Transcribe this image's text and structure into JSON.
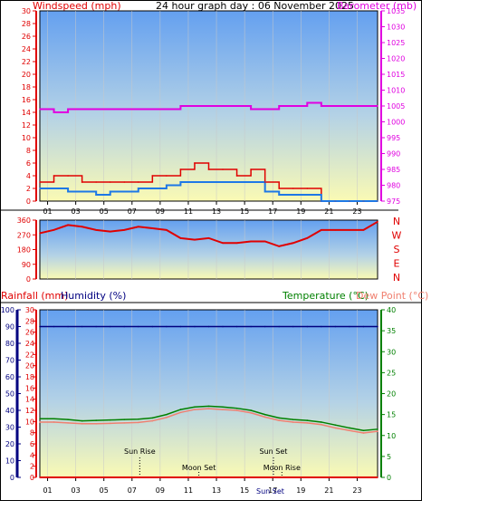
{
  "header": {
    "left_title": "Windspeed (mph)",
    "center_title": "24 hour graph day : 06 November 2025",
    "right_title": "Barometer (mb)"
  },
  "colors": {
    "wind_red": "#e00000",
    "gust_blue": "#1e78e6",
    "baro_magenta": "#e000e0",
    "temp_green": "#008000",
    "dew_salmon": "#f08070",
    "humidity_navy": "#000080",
    "rain_red": "#e00000",
    "sky_top": "#64a0f0",
    "sky_bottom": "#fafab4"
  },
  "chart_data": [
    {
      "type": "line",
      "title": "24 hour graph day : 06 November 2025",
      "x_ticks": [
        "01",
        "03",
        "05",
        "07",
        "09",
        "11",
        "13",
        "15",
        "17",
        "19",
        "21",
        "23"
      ],
      "y_left_label": "Windspeed (mph)",
      "y_left_ticks": [
        "0",
        "2",
        "4",
        "6",
        "8",
        "10",
        "12",
        "14",
        "16",
        "18",
        "20",
        "22",
        "24",
        "26",
        "28",
        "30"
      ],
      "ylim_left": [
        0,
        30
      ],
      "y_right_label": "Barometer (mb)",
      "y_right_ticks": [
        "975",
        "980",
        "985",
        "990",
        "995",
        "1000",
        "1005",
        "1010",
        "1015",
        "1020",
        "1025",
        "1030",
        "1035"
      ],
      "ylim_right": [
        975,
        1035
      ],
      "x_hours": [
        0,
        1,
        2,
        3,
        4,
        5,
        6,
        7,
        8,
        9,
        10,
        11,
        12,
        13,
        14,
        15,
        16,
        17,
        18,
        19,
        20,
        21,
        22,
        23,
        24
      ],
      "series": [
        {
          "name": "wind_gust",
          "values": [
            3,
            4,
            4,
            3,
            3,
            3,
            3,
            3,
            4,
            4,
            5,
            6,
            5,
            5,
            4,
            5,
            3,
            2,
            2,
            2,
            0,
            0,
            0,
            0,
            0
          ]
        },
        {
          "name": "wind_avg",
          "values": [
            2,
            2,
            1.5,
            1.5,
            1,
            1.5,
            1.5,
            2,
            2,
            2.5,
            3,
            3,
            3,
            3,
            3,
            3,
            1.5,
            1,
            1,
            1,
            0,
            0,
            0,
            0,
            0
          ]
        },
        {
          "name": "barometer",
          "values": [
            1004,
            1003,
            1004,
            1004,
            1004,
            1004,
            1004,
            1004,
            1004,
            1004,
            1005,
            1005,
            1005,
            1005,
            1005,
            1004,
            1004,
            1005,
            1005,
            1006,
            1005,
            1005,
            1005,
            1005,
            1005
          ]
        }
      ]
    },
    {
      "type": "line",
      "y_ticks": [
        "0",
        "90",
        "180",
        "270",
        "360"
      ],
      "ylim": [
        0,
        360
      ],
      "compass_labels": [
        "N",
        "W",
        "S",
        "E",
        "N"
      ],
      "x_hours": [
        0,
        1,
        2,
        3,
        4,
        5,
        6,
        7,
        8,
        9,
        10,
        11,
        12,
        13,
        14,
        15,
        16,
        17,
        18,
        19,
        20,
        21,
        22,
        23,
        24
      ],
      "series": [
        {
          "name": "wind_direction",
          "values": [
            280,
            300,
            330,
            320,
            300,
            290,
            300,
            320,
            310,
            300,
            250,
            240,
            250,
            220,
            220,
            230,
            230,
            200,
            220,
            250,
            300,
            300,
            300,
            300,
            350
          ]
        }
      ]
    },
    {
      "type": "line",
      "y_left_label": "Rainfall (mm)",
      "y_left_ticks": [
        "0",
        "2",
        "4",
        "6",
        "8",
        "10",
        "12",
        "14",
        "16",
        "18",
        "20",
        "22",
        "24",
        "26",
        "28",
        "30"
      ],
      "ylim_left": [
        0,
        30
      ],
      "humidity_label": "Humidity (%)",
      "humidity_ticks": [
        "0",
        "10",
        "20",
        "30",
        "40",
        "50",
        "60",
        "70",
        "80",
        "90",
        "100"
      ],
      "ylim_humidity": [
        0,
        100
      ],
      "y_right_label": "Temperature (°C)",
      "dew_label": "Dew Point (°C)",
      "y_right_ticks": [
        "0",
        "5",
        "10",
        "15",
        "20",
        "25",
        "30",
        "35",
        "40"
      ],
      "ylim_right": [
        0,
        40
      ],
      "x_hours": [
        0,
        1,
        2,
        3,
        4,
        5,
        6,
        7,
        8,
        9,
        10,
        11,
        12,
        13,
        14,
        15,
        16,
        17,
        18,
        19,
        20,
        21,
        22,
        23,
        24
      ],
      "series": [
        {
          "name": "temperature",
          "values": [
            14,
            14,
            13.8,
            13.5,
            13.6,
            13.7,
            13.8,
            13.9,
            14.2,
            15,
            16.2,
            16.8,
            17,
            16.8,
            16.5,
            16,
            15,
            14.2,
            13.8,
            13.6,
            13.2,
            12.5,
            11.8,
            11.2,
            11.5
          ]
        },
        {
          "name": "dew_point",
          "values": [
            13.2,
            13.2,
            13,
            12.8,
            12.8,
            12.9,
            13,
            13.1,
            13.5,
            14.3,
            15.5,
            16.2,
            16.4,
            16.2,
            16,
            15.4,
            14.4,
            13.6,
            13.2,
            13,
            12.6,
            11.8,
            11.2,
            10.6,
            11
          ]
        },
        {
          "name": "humidity",
          "values": [
            90,
            90,
            90,
            90,
            90,
            90,
            90,
            90,
            90,
            90,
            90,
            90,
            90,
            90,
            90,
            90,
            90,
            90,
            90,
            90,
            90,
            90,
            90,
            90,
            90
          ]
        },
        {
          "name": "rainfall",
          "values": [
            0,
            0,
            0,
            0,
            0,
            0,
            0,
            0,
            0,
            0,
            0,
            0,
            0,
            0,
            0,
            0,
            0,
            0,
            0,
            0,
            0,
            0,
            0,
            0,
            0
          ]
        }
      ],
      "events": [
        {
          "label": "Sun Rise",
          "hour": 7.1
        },
        {
          "label": "Moon Set",
          "hour": 11.3
        },
        {
          "label": "Sun Set",
          "hour": 16.6
        },
        {
          "label": "Moon Rise",
          "hour": 17.2
        }
      ],
      "bottom_overlay_label": "Sun Set"
    }
  ]
}
